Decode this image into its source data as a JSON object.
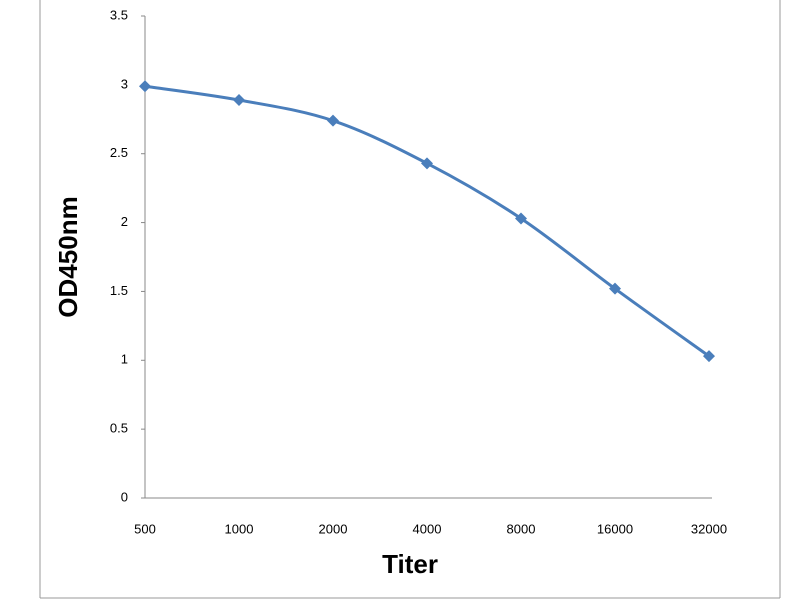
{
  "chart_data": {
    "type": "line",
    "x_label": "Titer",
    "y_label": "OD450nm",
    "categories": [
      "500",
      "1000",
      "2000",
      "4000",
      "8000",
      "16000",
      "32000"
    ],
    "series": [
      {
        "name": "OD450nm",
        "color": "#4a7ebb",
        "values": [
          2.99,
          2.89,
          2.74,
          2.43,
          2.03,
          1.52,
          1.03
        ]
      }
    ],
    "ylim": [
      0,
      3.5
    ],
    "yticks": [
      0,
      0.5,
      1,
      1.5,
      2,
      2.5,
      3,
      3.5
    ],
    "grid": false
  }
}
